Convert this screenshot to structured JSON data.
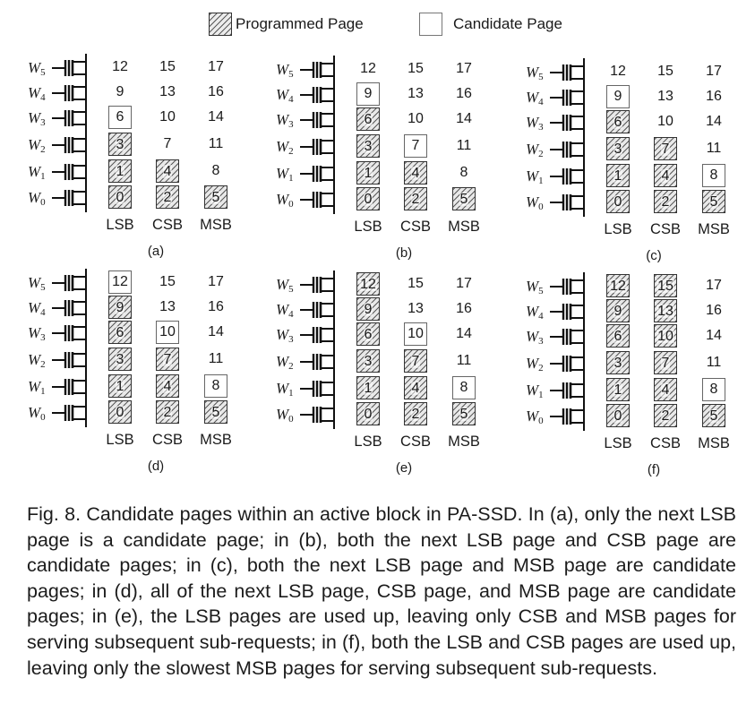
{
  "legend": {
    "programmed": "Programmed Page",
    "candidate": "Candidate Page"
  },
  "wordlines": [
    "W5",
    "W4",
    "W3",
    "W2",
    "W1",
    "W0"
  ],
  "columns": [
    "LSB",
    "CSB",
    "MSB"
  ],
  "pages": [
    [
      "12",
      "15",
      "17"
    ],
    [
      "9",
      "13",
      "16"
    ],
    [
      "6",
      "10",
      "14"
    ],
    [
      "3",
      "7",
      "11"
    ],
    [
      "1",
      "4",
      "8"
    ],
    [
      "0",
      "2",
      "5"
    ]
  ],
  "panels": [
    {
      "label": "(a)",
      "states": [
        [
          "none",
          "none",
          "none"
        ],
        [
          "none",
          "none",
          "none"
        ],
        [
          "cand",
          "none",
          "none"
        ],
        [
          "prog",
          "none",
          "none"
        ],
        [
          "prog",
          "prog",
          "none"
        ],
        [
          "prog",
          "prog",
          "prog"
        ]
      ]
    },
    {
      "label": "(b)",
      "states": [
        [
          "none",
          "none",
          "none"
        ],
        [
          "cand",
          "none",
          "none"
        ],
        [
          "prog",
          "none",
          "none"
        ],
        [
          "prog",
          "cand",
          "none"
        ],
        [
          "prog",
          "prog",
          "none"
        ],
        [
          "prog",
          "prog",
          "prog"
        ]
      ]
    },
    {
      "label": "(c)",
      "states": [
        [
          "none",
          "none",
          "none"
        ],
        [
          "cand",
          "none",
          "none"
        ],
        [
          "prog",
          "none",
          "none"
        ],
        [
          "prog",
          "prog",
          "none"
        ],
        [
          "prog",
          "prog",
          "cand"
        ],
        [
          "prog",
          "prog",
          "prog"
        ]
      ]
    },
    {
      "label": "(d)",
      "states": [
        [
          "cand",
          "none",
          "none"
        ],
        [
          "prog",
          "none",
          "none"
        ],
        [
          "prog",
          "cand",
          "none"
        ],
        [
          "prog",
          "prog",
          "none"
        ],
        [
          "prog",
          "prog",
          "cand"
        ],
        [
          "prog",
          "prog",
          "prog"
        ]
      ]
    },
    {
      "label": "(e)",
      "states": [
        [
          "prog",
          "none",
          "none"
        ],
        [
          "prog",
          "none",
          "none"
        ],
        [
          "prog",
          "cand",
          "none"
        ],
        [
          "prog",
          "prog",
          "none"
        ],
        [
          "prog",
          "prog",
          "cand"
        ],
        [
          "prog",
          "prog",
          "prog"
        ]
      ]
    },
    {
      "label": "(f)",
      "states": [
        [
          "prog",
          "prog",
          "none"
        ],
        [
          "prog",
          "prog",
          "none"
        ],
        [
          "prog",
          "prog",
          "none"
        ],
        [
          "prog",
          "prog",
          "none"
        ],
        [
          "prog",
          "prog",
          "cand"
        ],
        [
          "prog",
          "prog",
          "prog"
        ]
      ]
    }
  ],
  "caption": "Fig. 8. Candidate pages within an active block in PA-SSD. In (a), only the next LSB page is a candidate page; in (b), both the next LSB page and CSB page are candidate pages; in (c), both the next LSB page and MSB page are candidate pages; in (d), all of the next LSB page, CSB page, and MSB page are candidate pages; in (e), the LSB pages are used up, leaving only CSB and MSB pages for serving subsequent sub-requests; in (f), both the LSB and CSB pages are used up, leaving only the slowest MSB pages for serving subsequent sub-requests."
}
